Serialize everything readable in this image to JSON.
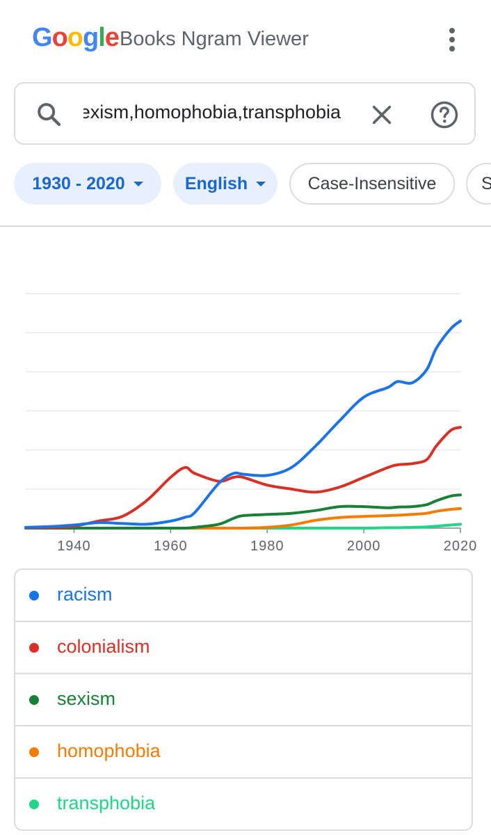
{
  "header": {
    "logo_letters": [
      {
        "ch": "G",
        "color": "#4285F4"
      },
      {
        "ch": "o",
        "color": "#EA4335"
      },
      {
        "ch": "o",
        "color": "#FBBC05"
      },
      {
        "ch": "g",
        "color": "#4285F4"
      },
      {
        "ch": "l",
        "color": "#34A853"
      },
      {
        "ch": "e",
        "color": "#EA4335"
      }
    ],
    "title": "Books Ngram Viewer",
    "more_icon": "more-vert-icon"
  },
  "search": {
    "value": "racism,colonialism,sexism,homophobia,transphobia",
    "search_icon": "search-icon",
    "clear_icon": "close-icon",
    "help_icon": "help-icon"
  },
  "filters": {
    "year_range": "1930 - 2020",
    "corpus": "English",
    "case": "Case-Insensitive",
    "smoothing": "S"
  },
  "chart_data": {
    "type": "line",
    "x": [
      1930,
      1935,
      1940,
      1945,
      1950,
      1955,
      1960,
      1963,
      1965,
      1970,
      1973,
      1975,
      1980,
      1985,
      1990,
      1995,
      2000,
      2005,
      2007,
      2010,
      2013,
      2015,
      2018,
      2020
    ],
    "xticks": [
      1940,
      1960,
      1980,
      2000,
      2020
    ],
    "xlim": [
      1930,
      2020
    ],
    "ylim": [
      0,
      6
    ],
    "grid": true,
    "series": [
      {
        "name": "racism",
        "color": "#1a73e8",
        "values": [
          0.02,
          0.04,
          0.08,
          0.14,
          0.12,
          0.1,
          0.18,
          0.28,
          0.4,
          1.2,
          1.4,
          1.38,
          1.35,
          1.55,
          2.1,
          2.75,
          3.35,
          3.6,
          3.75,
          3.8,
          4.1,
          4.6,
          5.3,
          5.3
        ],
        "raw": [
          0.02,
          0.04,
          0.08,
          0.14,
          0.12,
          0.1,
          0.18,
          0.28,
          0.4,
          1.15,
          1.4,
          1.38,
          1.35,
          1.55,
          2.1,
          2.75,
          3.35,
          3.6,
          3.75,
          3.72,
          4.05,
          4.6,
          5.1,
          5.3
        ]
      },
      {
        "name": "colonialism",
        "color": "#d93025",
        "values": [
          0.01,
          0.02,
          0.05,
          0.18,
          0.3,
          0.7,
          1.3,
          1.55,
          1.4,
          1.2,
          1.3,
          1.3,
          1.1,
          1.0,
          0.92,
          1.05,
          1.3,
          1.6,
          1.65,
          1.68,
          1.75,
          2.2,
          2.55,
          2.58
        ],
        "raw": [
          0.01,
          0.02,
          0.05,
          0.18,
          0.3,
          0.7,
          1.3,
          1.55,
          1.4,
          1.2,
          1.3,
          1.3,
          1.1,
          1.0,
          0.92,
          1.05,
          1.3,
          1.55,
          1.62,
          1.65,
          1.75,
          2.1,
          2.5,
          2.58
        ]
      },
      {
        "name": "sexism",
        "color": "#188038",
        "values": [
          0,
          0,
          0,
          0,
          0,
          0,
          0,
          0,
          0.02,
          0.1,
          0.25,
          0.32,
          0.35,
          0.38,
          0.45,
          0.55,
          0.55,
          0.52,
          0.54,
          0.55,
          0.6,
          0.7,
          0.82,
          0.85
        ]
      },
      {
        "name": "homophobia",
        "color": "#f57c00",
        "values": [
          0,
          0,
          0,
          0,
          0,
          0,
          0,
          0,
          0,
          0,
          0,
          0,
          0.02,
          0.08,
          0.2,
          0.27,
          0.3,
          0.32,
          0.33,
          0.35,
          0.38,
          0.43,
          0.48,
          0.5
        ]
      },
      {
        "name": "transphobia",
        "color": "#1ed686",
        "values": [
          0,
          0,
          0,
          0,
          0,
          0,
          0,
          0,
          0,
          0,
          0,
          0,
          0,
          0,
          0,
          0,
          0,
          0.01,
          0.01,
          0.02,
          0.03,
          0.05,
          0.08,
          0.1
        ]
      }
    ]
  }
}
